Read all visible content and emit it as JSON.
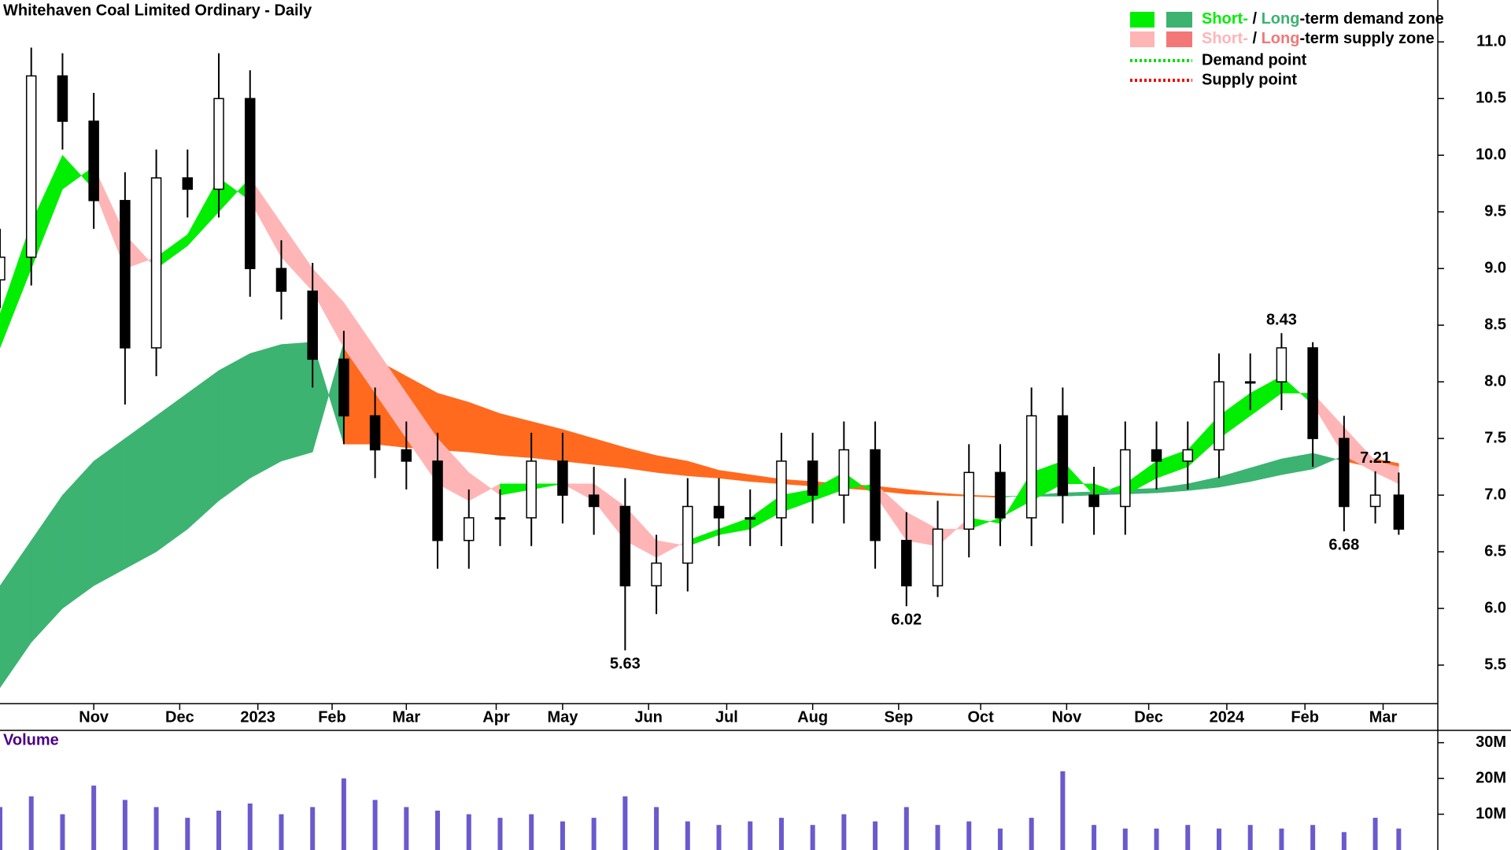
{
  "chart_data": {
    "type": "candlestick",
    "title": "Whitehaven Coal Limited Ordinary - Daily",
    "x": [
      0,
      8,
      16,
      24,
      32,
      40,
      48,
      56,
      64,
      72,
      80,
      88,
      96,
      104,
      112,
      120,
      128,
      136,
      144,
      152,
      160,
      168,
      176,
      184,
      192,
      200,
      208,
      216,
      224,
      232,
      240,
      248,
      256,
      264,
      272,
      280,
      288,
      296,
      304,
      312,
      320,
      328,
      336,
      344,
      352,
      358
    ],
    "open": [
      8.9,
      9.1,
      10.7,
      10.3,
      9.6,
      8.3,
      9.8,
      9.7,
      10.5,
      9.0,
      8.8,
      8.2,
      7.7,
      7.4,
      7.3,
      6.6,
      6.8,
      6.8,
      7.3,
      7.0,
      6.9,
      6.2,
      6.4,
      6.9,
      6.8,
      6.8,
      7.3,
      7.0,
      7.4,
      6.6,
      6.2,
      6.7,
      7.2,
      6.8,
      7.7,
      7.0,
      6.9,
      7.4,
      7.3,
      7.4,
      8.0,
      8.0,
      8.3,
      7.5,
      6.9,
      7.0
    ],
    "high": [
      9.35,
      10.95,
      10.9,
      10.55,
      9.85,
      10.05,
      10.05,
      10.9,
      10.75,
      9.25,
      9.05,
      8.45,
      7.95,
      7.65,
      7.55,
      7.05,
      7.05,
      7.55,
      7.55,
      7.25,
      7.15,
      6.65,
      7.15,
      7.15,
      7.05,
      7.55,
      7.55,
      7.65,
      7.65,
      6.85,
      6.95,
      7.45,
      7.45,
      7.95,
      7.95,
      7.25,
      7.65,
      7.65,
      7.65,
      8.25,
      8.25,
      8.43,
      8.35,
      7.7,
      7.21,
      7.2
    ],
    "low": [
      8.65,
      8.85,
      10.05,
      9.35,
      7.8,
      8.05,
      9.45,
      9.45,
      8.75,
      8.55,
      7.95,
      7.45,
      7.15,
      7.05,
      6.35,
      6.35,
      6.55,
      6.55,
      6.75,
      6.65,
      5.63,
      5.95,
      6.15,
      6.55,
      6.55,
      6.55,
      6.75,
      6.75,
      6.35,
      6.02,
      6.1,
      6.45,
      6.55,
      6.55,
      6.75,
      6.65,
      6.65,
      7.05,
      7.05,
      7.15,
      7.75,
      7.75,
      7.25,
      6.68,
      6.75,
      6.65
    ],
    "close": [
      9.1,
      10.7,
      10.3,
      9.6,
      8.3,
      9.8,
      9.7,
      10.5,
      9.0,
      8.8,
      8.2,
      7.7,
      7.4,
      7.3,
      6.6,
      6.8,
      6.8,
      7.3,
      7.0,
      6.9,
      6.2,
      6.4,
      6.9,
      6.8,
      6.8,
      7.3,
      7.0,
      7.4,
      6.6,
      6.2,
      6.7,
      7.2,
      6.8,
      7.7,
      7.0,
      6.9,
      7.4,
      7.3,
      7.4,
      8.0,
      8.0,
      8.3,
      7.5,
      6.9,
      7.0,
      6.7
    ],
    "xlim": [
      0,
      368
    ],
    "xticks": [
      {
        "value": 24,
        "label": "Nov"
      },
      {
        "value": 46,
        "label": "Dec"
      },
      {
        "value": 66,
        "label": "2023"
      },
      {
        "value": 85,
        "label": "Feb"
      },
      {
        "value": 104,
        "label": "Mar"
      },
      {
        "value": 127,
        "label": "Apr"
      },
      {
        "value": 144,
        "label": "May"
      },
      {
        "value": 166,
        "label": "Jun"
      },
      {
        "value": 186,
        "label": "Jul"
      },
      {
        "value": 208,
        "label": "Aug"
      },
      {
        "value": 230,
        "label": "Sep"
      },
      {
        "value": 251,
        "label": "Oct"
      },
      {
        "value": 273,
        "label": "Nov"
      },
      {
        "value": 294,
        "label": "Dec"
      },
      {
        "value": 314,
        "label": "2024"
      },
      {
        "value": 334,
        "label": "Feb"
      },
      {
        "value": 354,
        "label": "Mar"
      }
    ],
    "ylim": [
      5.16,
      11.37
    ],
    "yticks": [
      5.5,
      {
        "value": 6,
        "label": "6.0"
      },
      6.5,
      {
        "value": 7,
        "label": "7.0"
      },
      7.5,
      {
        "value": 8,
        "label": "8.0"
      },
      8.5,
      {
        "value": 9,
        "label": "9.0"
      },
      9.5,
      {
        "value": 10,
        "label": "10.0"
      },
      10.5,
      {
        "value": 11,
        "label": "11.0"
      }
    ],
    "zones": [
      {
        "fast": [
          6.2,
          6.6,
          7.0,
          7.3,
          7.5,
          7.7,
          7.9,
          8.1,
          8.25,
          8.33,
          8.35,
          7.45,
          7.45,
          7.42,
          7.4,
          7.38,
          7.35,
          7.33,
          7.3,
          7.27,
          7.24,
          7.2,
          7.17,
          7.15,
          7.12,
          7.1,
          7.08,
          7.06,
          7.04,
          7.01,
          7.0,
          6.99,
          6.98,
          7.0,
          7.02,
          7.03,
          7.05,
          7.06,
          7.1,
          7.16,
          7.24,
          7.32,
          7.37,
          7.3,
          7.24,
          7.2
        ],
        "slow": [
          5.3,
          5.7,
          6.0,
          6.2,
          6.35,
          6.5,
          6.7,
          6.95,
          7.15,
          7.3,
          7.38,
          8.35,
          8.2,
          8.05,
          7.9,
          7.82,
          7.72,
          7.65,
          7.58,
          7.5,
          7.42,
          7.35,
          7.3,
          7.22,
          7.18,
          7.14,
          7.12,
          7.1,
          7.08,
          7.05,
          7.02,
          7.0,
          6.99,
          6.99,
          6.99,
          7.0,
          7.01,
          7.02,
          7.04,
          7.07,
          7.12,
          7.18,
          7.23,
          7.35,
          7.32,
          7.28
        ],
        "demand_color": "#3cb371",
        "supply_color": "#ff6a1f"
      },
      {
        "fast": [
          8.6,
          9.4,
          10.0,
          9.7,
          9.0,
          9.1,
          9.3,
          9.8,
          9.6,
          9.1,
          8.8,
          8.3,
          7.9,
          7.5,
          7.1,
          6.95,
          7.1,
          7.1,
          7.1,
          6.95,
          6.6,
          6.45,
          6.6,
          6.7,
          6.8,
          7.0,
          7.05,
          7.2,
          7.0,
          6.6,
          6.55,
          6.8,
          6.75,
          7.2,
          7.3,
          7.0,
          7.1,
          7.3,
          7.4,
          7.7,
          7.9,
          8.05,
          7.8,
          7.35,
          7.2,
          7.1
        ],
        "slow": [
          8.3,
          9.0,
          9.7,
          9.9,
          9.3,
          9.0,
          9.2,
          9.5,
          9.8,
          9.4,
          9.0,
          8.7,
          8.3,
          7.9,
          7.5,
          7.2,
          7.0,
          7.05,
          7.1,
          7.1,
          6.9,
          6.6,
          6.55,
          6.65,
          6.7,
          6.85,
          6.95,
          7.05,
          7.1,
          6.85,
          6.7,
          6.7,
          6.8,
          6.95,
          7.1,
          7.1,
          7.0,
          7.15,
          7.25,
          7.5,
          7.7,
          7.9,
          7.9,
          7.6,
          7.3,
          7.25
        ],
        "demand_color": "#00ee00",
        "supply_color": "#ffb5b5"
      }
    ],
    "annotations": [
      {
        "x": 160,
        "value": 5.63
      },
      {
        "x": 232,
        "value": 6.02
      },
      {
        "x": 328,
        "value": 8.43
      },
      {
        "x": 344,
        "value": 6.68
      },
      {
        "x": 352,
        "value": 7.21
      }
    ],
    "volume": {
      "label": "Volume",
      "color": "#6a5acd",
      "values": [
        12,
        15,
        10,
        18,
        14,
        12,
        9,
        11,
        13,
        10,
        12,
        20,
        14,
        12,
        11,
        10,
        9,
        10,
        8,
        9,
        15,
        12,
        8,
        7,
        8,
        9,
        7,
        10,
        8,
        12,
        7,
        8,
        6,
        9,
        22,
        7,
        6,
        6,
        7,
        6,
        7,
        6,
        7,
        5,
        9,
        6
      ],
      "ylim": [
        0,
        33
      ],
      "yticks": [
        {
          "value": 10,
          "label": "10M"
        },
        {
          "value": 20,
          "label": "20M"
        },
        {
          "value": 30,
          "label": "30M"
        }
      ]
    },
    "legend": [
      {
        "short": "Short-",
        "sep": " / ",
        "long": "Long",
        "rest": "-term demand zone",
        "short_color": "#00ee00",
        "long_color": "#3cb371"
      },
      {
        "short": "Short-",
        "sep": " / ",
        "long": "Long",
        "rest": "-term supply zone",
        "short_color": "#ffb5b5",
        "long_color": "#f47777"
      },
      {
        "label": "Demand point",
        "color": "#00dd00"
      },
      {
        "label": "Supply point",
        "color": "#ee0000"
      }
    ]
  }
}
